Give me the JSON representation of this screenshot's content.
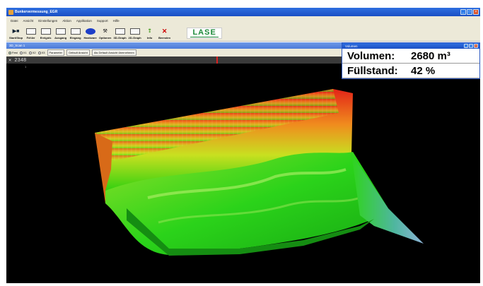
{
  "window": {
    "title": "Bunkervermessung_EGR",
    "min": "_",
    "max": "□",
    "close": "×"
  },
  "menu": [
    "Datei",
    "Ansicht",
    "Einstellungen",
    "Aktion",
    "Applikation",
    "Support",
    "Hilfe"
  ],
  "toolbar": {
    "buttons": [
      {
        "label": "Start/Stop",
        "icon": "play-stop-icon"
      },
      {
        "label": "Fehler",
        "icon": "fehler-icon"
      },
      {
        "label": "Ereignis",
        "icon": "ereignis-icon"
      },
      {
        "label": "Ausgang",
        "icon": "ausgang-icon"
      },
      {
        "label": "Eingang",
        "icon": "eingang-icon"
      },
      {
        "label": "Hardware",
        "icon": "hardware-icon"
      },
      {
        "label": "Optionen",
        "icon": "wrench-icon"
      },
      {
        "label": "3D-Graph",
        "icon": "3d-graph-icon"
      },
      {
        "label": "2D-Graph",
        "icon": "2d-graph-icon"
      },
      {
        "label": "Info",
        "icon": "bulb-icon"
      },
      {
        "label": "Beenden",
        "icon": "close-red-icon"
      }
    ],
    "logo": "LASE"
  },
  "subwindow": {
    "title": "3D_Scan 1",
    "radios": [
      {
        "label": "Fest",
        "checked": true
      },
      {
        "label": "X1",
        "checked": false
      },
      {
        "label": "X2",
        "checked": false
      },
      {
        "label": "X3",
        "checked": false
      }
    ],
    "buttons": [
      "Parameter",
      "Default Ansicht",
      "Als Default Ansicht übernehmen"
    ],
    "readout": "2348",
    "readout_sub": "1"
  },
  "volume_window": {
    "title": "Volumen",
    "rows": [
      {
        "label": "Volumen:",
        "value": "2680 m³"
      },
      {
        "label": "Füllstand:",
        "value": "42 %"
      }
    ]
  }
}
